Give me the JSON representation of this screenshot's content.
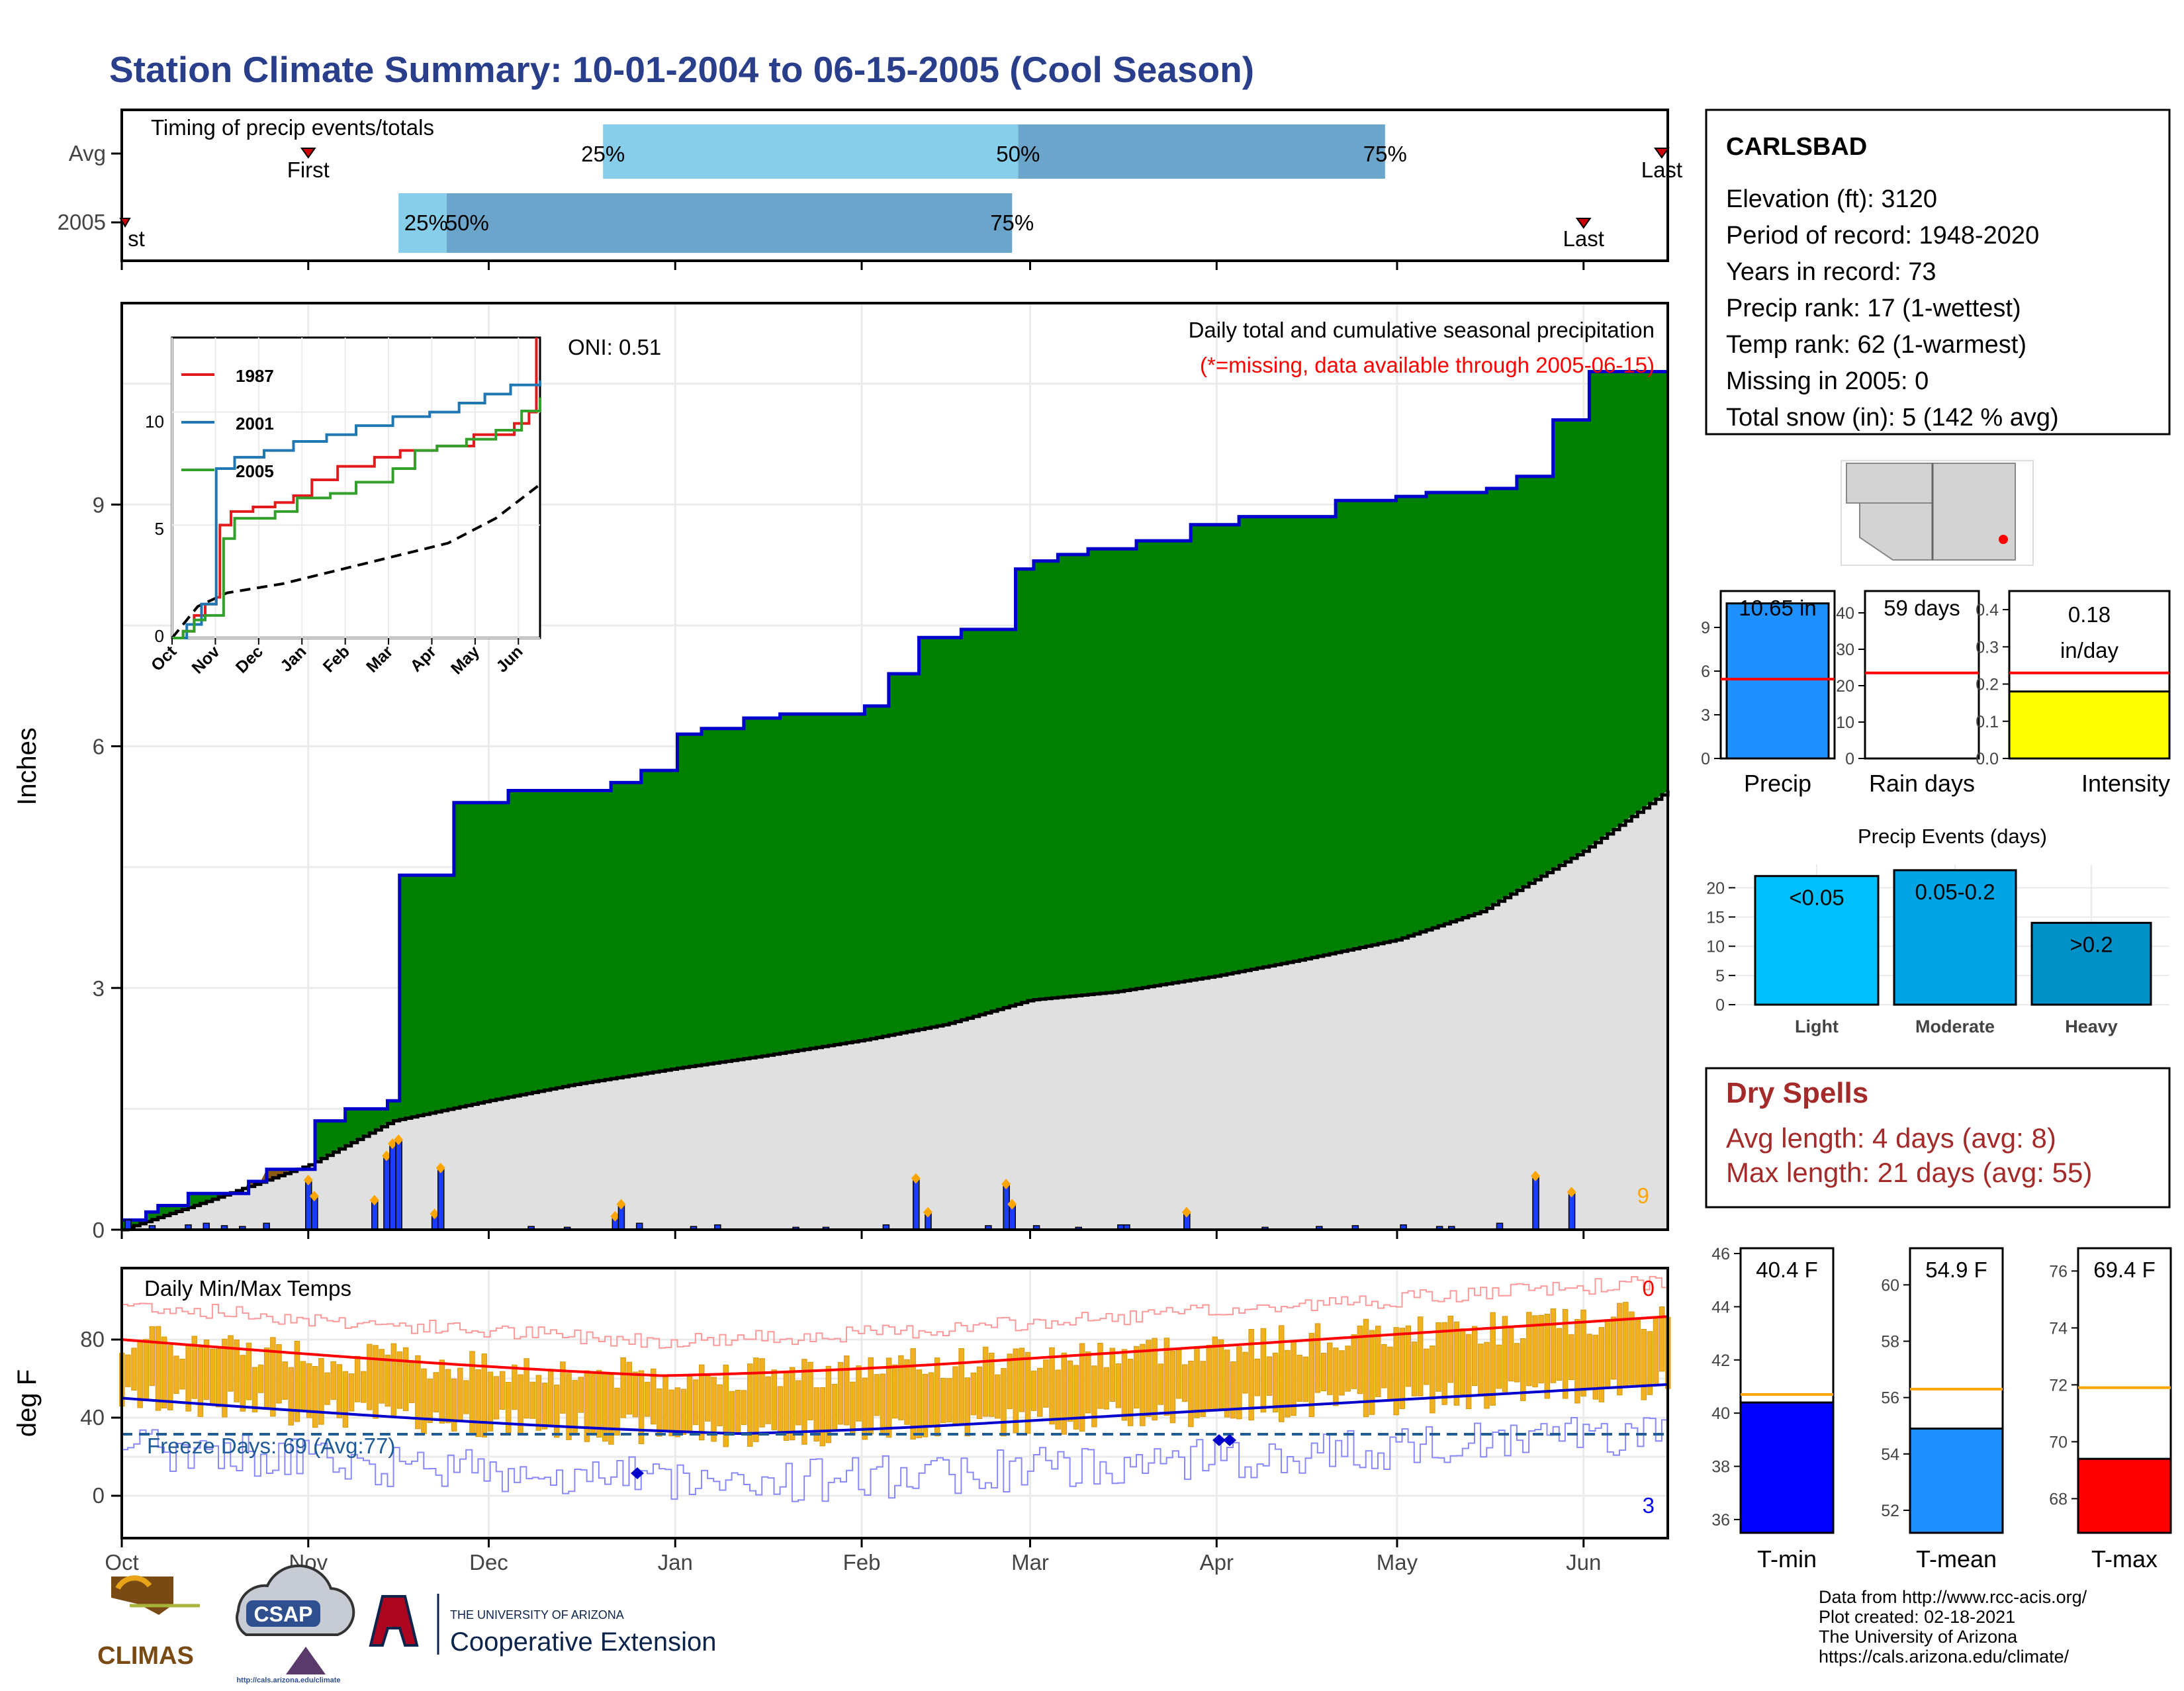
{
  "title": "Station Climate Summary: 10-01-2004 to 06-15-2005 (Cool Season)",
  "timing": {
    "label": "Timing of precip events/totals",
    "rows": [
      "Avg",
      "2005"
    ],
    "first_label": "First",
    "last_label": "Last",
    "avg": {
      "first": "Nov 1",
      "p25": "Dec 20",
      "p50": "Feb 27",
      "p75": "Apr 29",
      "last": "Jun 14"
    },
    "y2005": {
      "first": "Oct 1",
      "p25": "Nov 16",
      "p50": "Nov 24",
      "p75": "Feb 26",
      "last": "Jun 1"
    },
    "pct_labels": [
      "25%",
      "50%",
      "75%"
    ]
  },
  "station": {
    "name": "CARLSBAD",
    "lines": [
      "Elevation (ft): 3120",
      "Period of record: 1948-2020",
      "Years in record: 73",
      "Precip rank: 17 (1-wettest)",
      "Temp rank: 62 (1-warmest)",
      "Missing in 2005: 0",
      "Total snow (in): 5 (142 % avg)"
    ]
  },
  "precip_panel": {
    "ylabel": "Inches",
    "oni": "ONI: 0.51",
    "title": "Daily total and cumulative seasonal precipitation",
    "subtitle": "(*=missing, data available through 2005-06-15)",
    "corner_value": "9",
    "colors": {
      "above": "#008000",
      "below": "#8B5A12",
      "normal": "#e0e0e0",
      "cum_line": "#0000cc",
      "daily": "#1a3dff",
      "marker": "#ffa500",
      "subtitle": "#ff0000",
      "corner": "#ffa500"
    }
  },
  "inset": {
    "series": [
      {
        "name": "1987",
        "color": "#e31a1c"
      },
      {
        "name": "2001",
        "color": "#1f78b4"
      },
      {
        "name": "2005",
        "color": "#33a02c"
      }
    ],
    "months": [
      "Oct",
      "Nov",
      "Dec",
      "Jan",
      "Feb",
      "Mar",
      "Apr",
      "May",
      "Jun"
    ],
    "yticks": [
      "0",
      "5",
      "10"
    ]
  },
  "bars_precip": {
    "label": "Precip",
    "value": "10.65 in",
    "yticks": [
      "0",
      "3",
      "6",
      "9"
    ]
  },
  "bars_rain": {
    "label": "Rain days",
    "value": "59 days",
    "yticks": [
      "0",
      "10",
      "20",
      "30",
      "40"
    ]
  },
  "bars_intensity": {
    "label": "Intensity",
    "value1": "0.18",
    "value2": "in/day",
    "yticks": [
      "0.0",
      "0.1",
      "0.2",
      "0.3",
      "0.4"
    ]
  },
  "events": {
    "title": "Precip Events (days)",
    "categories": [
      "Light",
      "Moderate",
      "Heavy"
    ],
    "labels": [
      "<0.05",
      "0.05-0.2",
      ">0.2"
    ],
    "yticks": [
      "0",
      "5",
      "10",
      "15",
      "20"
    ],
    "colors": [
      "#00bfff",
      "#00a5e6",
      "#0090c8"
    ]
  },
  "dry": {
    "title": "Dry Spells",
    "avg": "Avg length: 4 days (avg: 8)",
    "max": "Max length: 21 days (avg: 55)",
    "color": "#a52a2a"
  },
  "temp_panel": {
    "ylabel": "deg F",
    "label": "Daily Min/Max Temps",
    "freeze": "Freeze Days: 69 (Avg:77)",
    "top_right": "0",
    "bottom_right": "3",
    "yticks": [
      "0",
      "40",
      "80"
    ],
    "months": [
      "Oct",
      "Nov",
      "Dec",
      "Jan",
      "Feb",
      "Mar",
      "Apr",
      "May",
      "Jun"
    ]
  },
  "temp_bars": [
    {
      "label": "T-min",
      "value": "40.4 F",
      "yticks": [
        "36",
        "38",
        "40",
        "42",
        "44",
        "46"
      ],
      "color": "#0000ff"
    },
    {
      "label": "T-mean",
      "value": "54.9 F",
      "yticks": [
        "52",
        "54",
        "56",
        "58",
        "60"
      ],
      "color": "#1e90ff"
    },
    {
      "label": "T-max",
      "value": "69.4 F",
      "yticks": [
        "68",
        "70",
        "72",
        "74",
        "76"
      ],
      "color": "#ff0000"
    }
  ],
  "footer": {
    "lines": [
      "Data from http://www.rcc-acis.org/",
      "Plot created: 02-18-2021",
      "The University of Arizona",
      "https://cals.arizona.edu/climate/"
    ],
    "climas": "CLIMAS",
    "csap": "CSAP",
    "csap_url": "http://cals.arizona.edu/climate",
    "ua_small": "THE UNIVERSITY OF ARIZONA",
    "ua_big": "Cooperative Extension"
  },
  "chart_data": {
    "type": "area",
    "title": "Daily total and cumulative seasonal precipitation",
    "ylabel": "Inches",
    "x_range": [
      "2004-10-01",
      "2005-06-15"
    ],
    "ylim": [
      0,
      11.5
    ],
    "series": [
      {
        "name": "2005",
        "cumulative_x": [
          "2004-10-01",
          "2004-10-05",
          "2004-10-07",
          "2004-10-12",
          "2004-10-22",
          "2004-10-25",
          "2004-11-02",
          "2004-11-07",
          "2004-11-14",
          "2004-11-16",
          "2004-11-25",
          "2004-12-04",
          "2004-12-21",
          "2004-12-26",
          "2005-01-01",
          "2005-01-05",
          "2005-01-12",
          "2005-01-18",
          "2005-02-01",
          "2005-02-05",
          "2005-02-10",
          "2005-02-17",
          "2005-02-26",
          "2005-03-01",
          "2005-03-05",
          "2005-03-10",
          "2005-03-18",
          "2005-03-27",
          "2005-04-04",
          "2005-04-15",
          "2005-04-20",
          "2005-04-30",
          "2005-05-05",
          "2005-05-15",
          "2005-05-20",
          "2005-05-26",
          "2005-06-01",
          "2005-06-15"
        ],
        "cumulative": [
          0.12,
          0.22,
          0.3,
          0.45,
          0.6,
          0.75,
          1.35,
          1.5,
          1.6,
          4.4,
          5.3,
          5.45,
          5.55,
          5.7,
          6.15,
          6.22,
          6.35,
          6.4,
          6.5,
          6.9,
          7.35,
          7.45,
          8.2,
          8.3,
          8.38,
          8.45,
          8.55,
          8.75,
          8.85,
          8.85,
          9.05,
          9.1,
          9.15,
          9.2,
          9.35,
          10.05,
          10.65,
          10.65
        ]
      },
      {
        "name": "Avg",
        "cumulative_x": [
          "2004-10-01",
          "2004-10-15",
          "2004-11-01",
          "2004-11-15",
          "2004-12-01",
          "2004-12-15",
          "2005-01-01",
          "2005-01-15",
          "2005-02-01",
          "2005-02-15",
          "2005-03-01",
          "2005-03-15",
          "2005-04-01",
          "2005-04-15",
          "2005-05-01",
          "2005-05-15",
          "2005-06-01",
          "2005-06-15"
        ],
        "cumulative": [
          0.0,
          0.35,
          0.8,
          1.35,
          1.6,
          1.8,
          2.0,
          2.15,
          2.35,
          2.55,
          2.85,
          2.95,
          3.15,
          3.35,
          3.6,
          3.95,
          4.7,
          5.45
        ]
      }
    ],
    "daily_x": [
      "2004-10-02",
      "2004-10-06",
      "2004-10-12",
      "2004-10-15",
      "2004-10-18",
      "2004-10-21",
      "2004-10-25",
      "2004-11-01",
      "2004-11-02",
      "2004-11-12",
      "2004-11-14",
      "2004-11-15",
      "2004-11-16",
      "2004-11-22",
      "2004-11-23",
      "2004-12-08",
      "2004-12-14",
      "2004-12-22",
      "2004-12-23",
      "2004-12-26",
      "2005-01-04",
      "2005-01-08",
      "2005-01-21",
      "2005-01-26",
      "2005-02-05",
      "2005-02-10",
      "2005-02-12",
      "2005-02-22",
      "2005-02-25",
      "2005-02-26",
      "2005-03-02",
      "2005-03-09",
      "2005-03-16",
      "2005-03-17",
      "2005-03-27",
      "2005-04-09",
      "2005-04-18",
      "2005-04-24",
      "2005-05-02",
      "2005-05-08",
      "2005-05-10",
      "2005-05-18",
      "2005-05-24",
      "2005-05-30"
    ],
    "daily_values": [
      0.12,
      0.05,
      0.06,
      0.08,
      0.05,
      0.04,
      0.08,
      0.6,
      0.4,
      0.35,
      0.9,
      1.05,
      1.1,
      0.18,
      0.75,
      0.04,
      0.03,
      0.15,
      0.3,
      0.08,
      0.04,
      0.06,
      0.03,
      0.03,
      0.06,
      0.62,
      0.2,
      0.05,
      0.55,
      0.3,
      0.05,
      0.03,
      0.06,
      0.06,
      0.2,
      0.03,
      0.04,
      0.05,
      0.06,
      0.04,
      0.04,
      0.08,
      0.65,
      0.45
    ]
  }
}
